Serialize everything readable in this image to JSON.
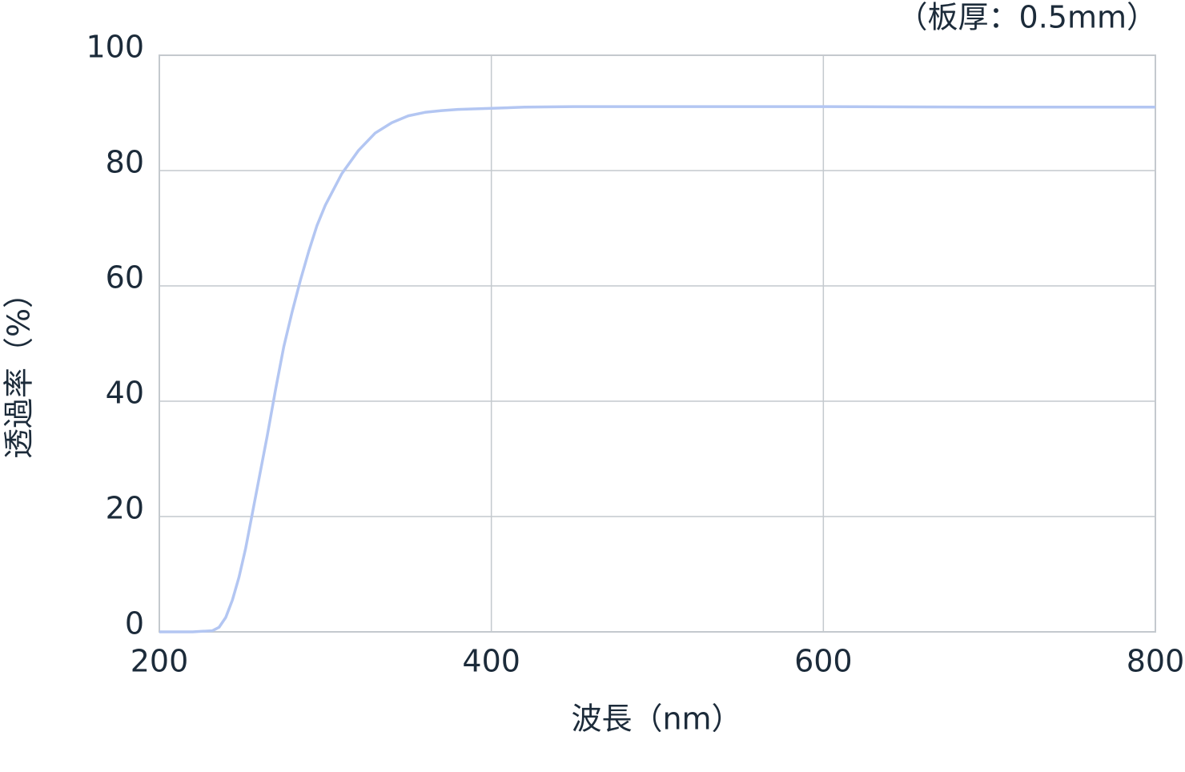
{
  "chart_data": {
    "type": "line",
    "annotation": "（板厚：0.5mm）",
    "x_label": "波長（nm）",
    "y_label": "透過率（%）",
    "x": [
      200,
      220,
      232,
      236,
      240,
      244,
      248,
      252,
      256,
      260,
      265,
      270,
      275,
      280,
      285,
      290,
      295,
      300,
      310,
      320,
      330,
      340,
      350,
      360,
      370,
      380,
      400,
      420,
      450,
      500,
      600,
      700,
      800
    ],
    "series": [
      {
        "color": "#b3c6f2",
        "values": [
          0,
          0,
          0.2,
          0.8,
          2.5,
          5.5,
          9.5,
          14.5,
          20.5,
          26.5,
          34,
          42,
          49.5,
          55.5,
          61,
          66,
          70.5,
          74,
          79.5,
          83.5,
          86.5,
          88.3,
          89.5,
          90.1,
          90.4,
          90.6,
          90.8,
          91,
          91.1,
          91.1,
          91.1,
          91,
          91
        ]
      }
    ],
    "xlim": [
      200,
      800
    ],
    "xticks": [
      200,
      400,
      600,
      800
    ],
    "ylim": [
      0,
      100
    ],
    "yticks": [
      0,
      20,
      40,
      60,
      80,
      100
    ],
    "grid": true
  }
}
